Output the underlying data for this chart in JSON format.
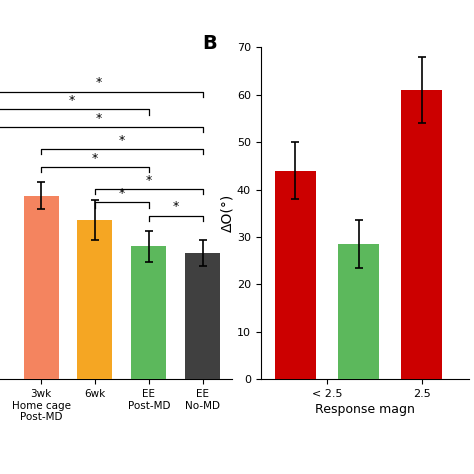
{
  "panel_A": {
    "categories": [
      "3wk\nHome cage\nPost-MD",
      "6wk",
      "EE\nPost-MD",
      "EE\nNo-MD"
    ],
    "values": [
      41.5,
      36.0,
      30.0,
      28.5
    ],
    "errors": [
      3.0,
      4.5,
      3.5,
      3.0
    ],
    "colors": [
      "#F4845F",
      "#F5A623",
      "#5CB85C",
      "#404040"
    ],
    "ylim": [
      0,
      75
    ],
    "yticks": [],
    "xlim": [
      -0.85,
      3.55
    ],
    "bar_width": 0.65,
    "bracket_data": [
      [
        2,
        3,
        37,
        "*"
      ],
      [
        1,
        2,
        40,
        "*"
      ],
      [
        1,
        3,
        43,
        "*"
      ],
      [
        0,
        2,
        48,
        "*"
      ],
      [
        0,
        3,
        52,
        "*"
      ]
    ],
    "left_bracket_data": [
      [
        -0.85,
        3,
        57,
        "*"
      ],
      [
        -0.85,
        2,
        61,
        "*"
      ],
      [
        -0.85,
        3,
        65,
        "*"
      ]
    ]
  },
  "panel_B": {
    "bar_positions": [
      0,
      1,
      2
    ],
    "bar_values": [
      44.0,
      28.5,
      61.0
    ],
    "bar_errors": [
      6.0,
      5.0,
      7.0
    ],
    "bar_colors": [
      "#CC0000",
      "#5CB85C",
      "#CC0000"
    ],
    "ylabel": "ΔO(°)",
    "xlabel": "Response magn",
    "ylim": [
      0,
      70
    ],
    "yticks": [
      0,
      10,
      20,
      30,
      40,
      50,
      60,
      70
    ],
    "xlim": [
      -0.55,
      2.75
    ],
    "xtick_positions": [
      0.5,
      2.0
    ],
    "xtick_labels": [
      "< 2.5",
      "2.5"
    ],
    "panel_label": "B",
    "bar_width": 0.65
  },
  "fig_width": 4.74,
  "fig_height": 4.74,
  "dpi": 100
}
